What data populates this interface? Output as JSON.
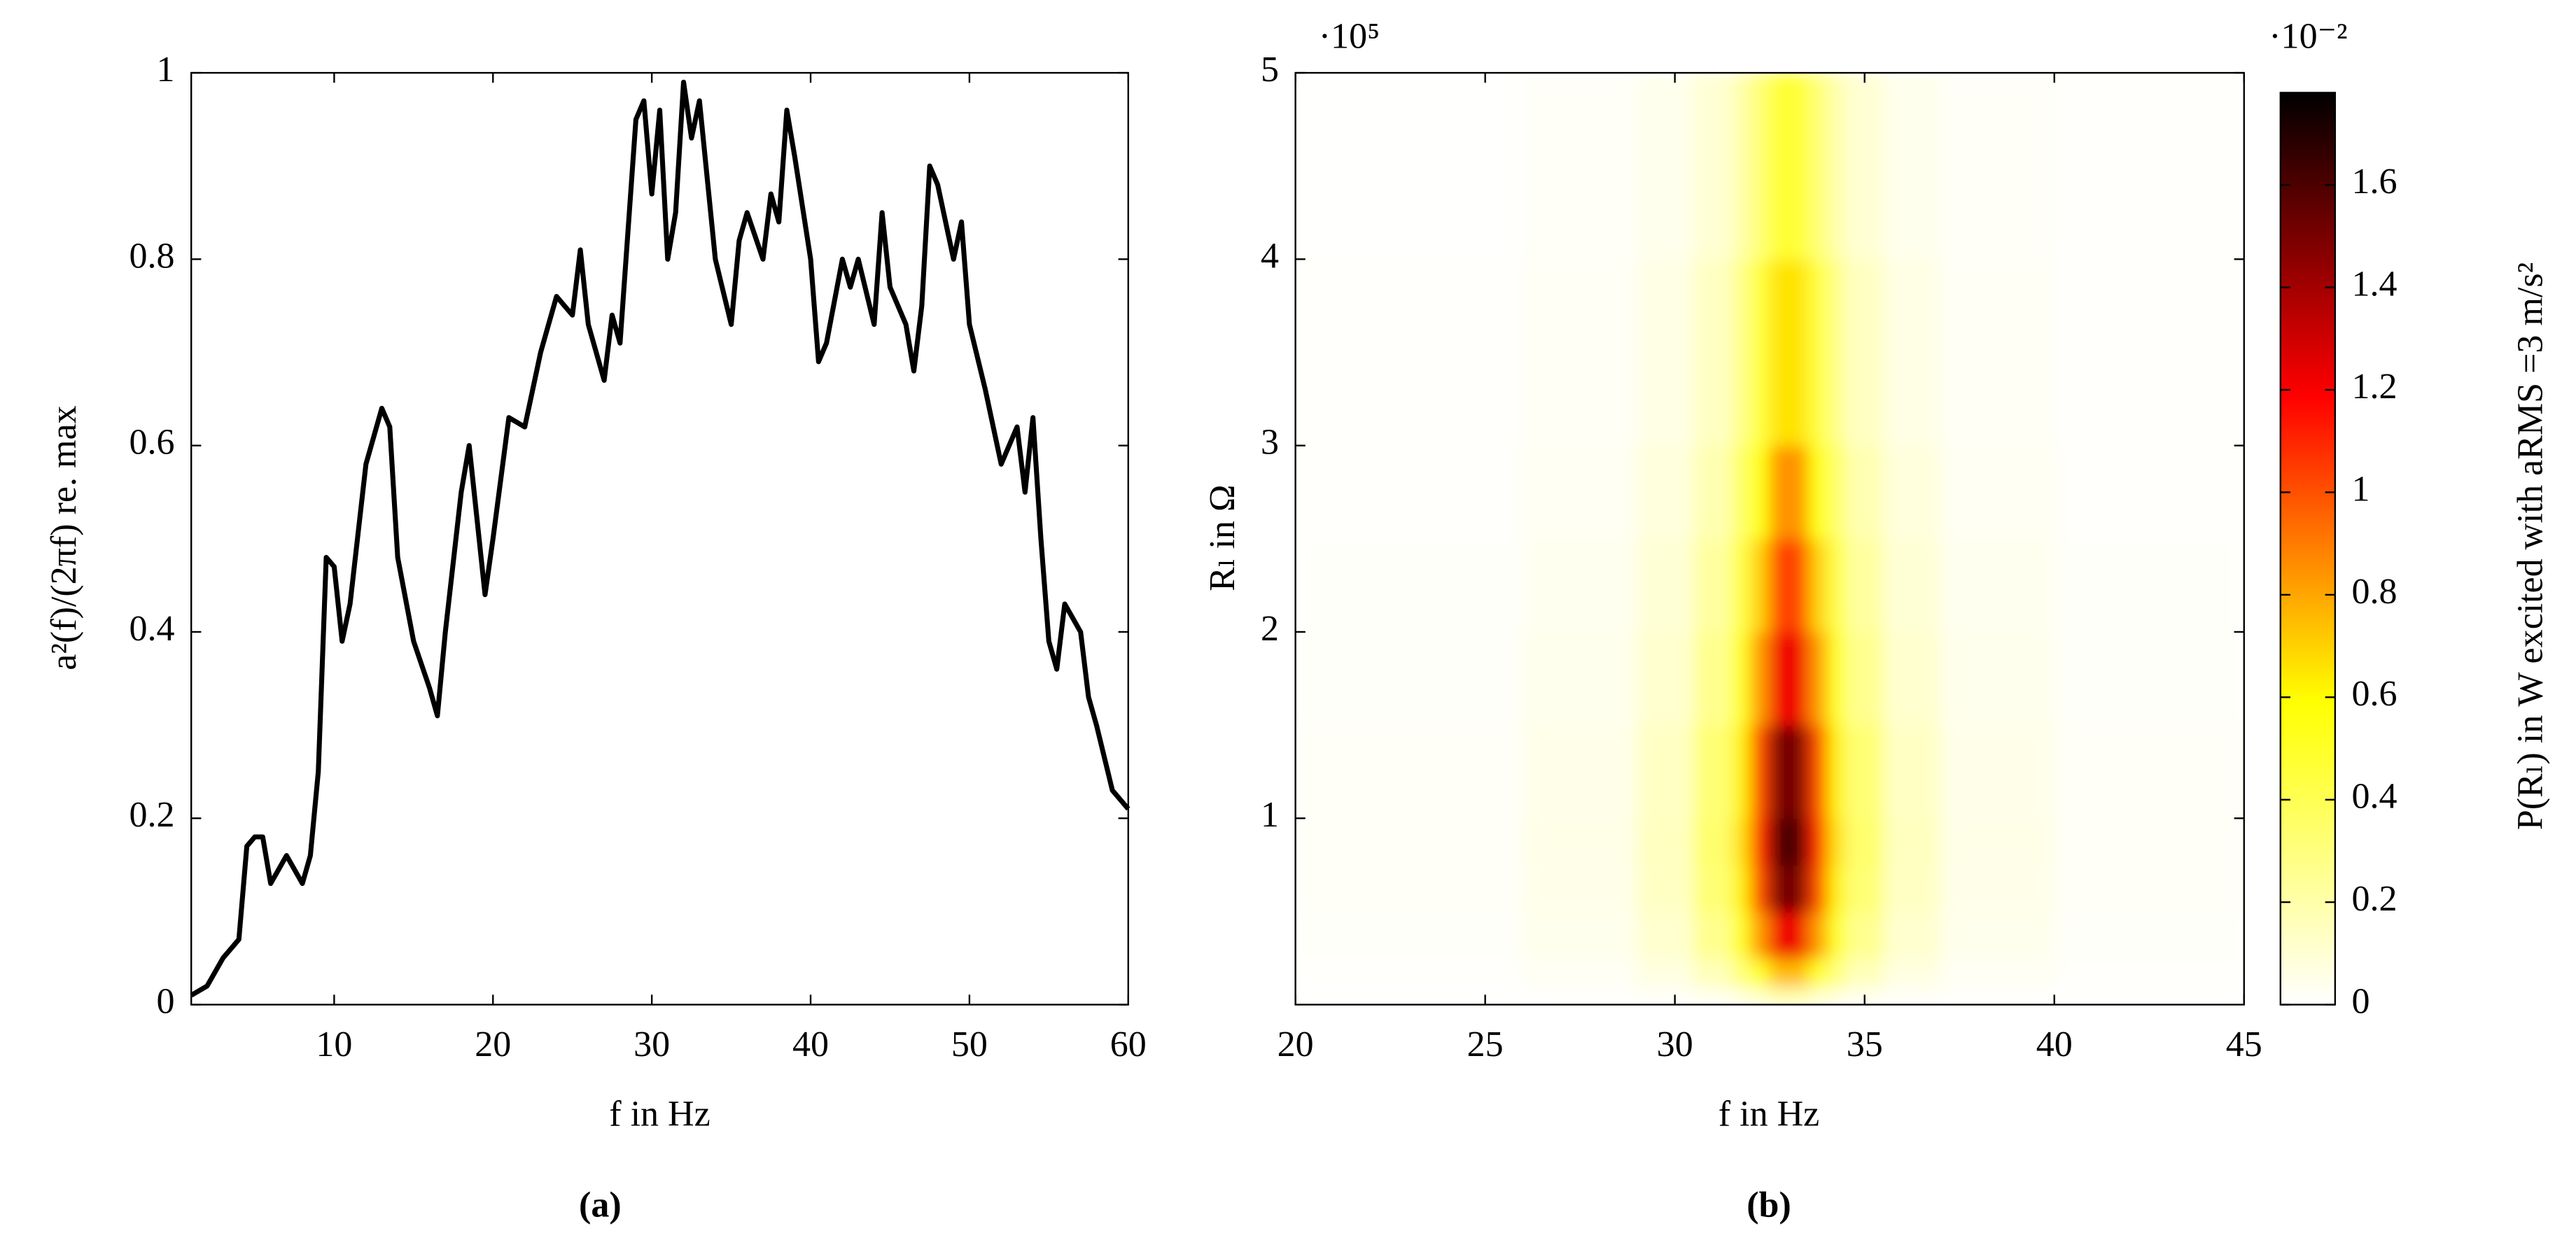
{
  "chart_data": [
    {
      "type": "line",
      "panel_label": "(a)",
      "xlabel": "f in Hz",
      "ylabel": "a²(f)/(2πf) re. max",
      "color": "#000000",
      "x": [
        1,
        2,
        3,
        4,
        4.5,
        5,
        5.5,
        6,
        7,
        8,
        8.5,
        9,
        9.5,
        10,
        10.5,
        11,
        12,
        13,
        13.5,
        14,
        15,
        16,
        16.5,
        17,
        18,
        18.5,
        19,
        19.5,
        20,
        21,
        22,
        23,
        24,
        25,
        25.5,
        26,
        27,
        27.5,
        28,
        29,
        29.5,
        30,
        30.5,
        31,
        31.5,
        32,
        32.5,
        33,
        34,
        35,
        35.5,
        36,
        37,
        37.5,
        38,
        38.5,
        39,
        40,
        40.5,
        41,
        42,
        42.5,
        43,
        44,
        44.5,
        45,
        46,
        46.5,
        47,
        47.5,
        48,
        49,
        49.5,
        50,
        51,
        52,
        53,
        53.5,
        54,
        54.5,
        55,
        55.5,
        56,
        57,
        57.5,
        58,
        59,
        60
      ],
      "values": [
        0.01,
        0.02,
        0.05,
        0.07,
        0.17,
        0.18,
        0.18,
        0.13,
        0.16,
        0.13,
        0.16,
        0.25,
        0.48,
        0.47,
        0.39,
        0.43,
        0.58,
        0.64,
        0.62,
        0.48,
        0.39,
        0.34,
        0.31,
        0.4,
        0.55,
        0.6,
        0.52,
        0.44,
        0.5,
        0.63,
        0.62,
        0.7,
        0.76,
        0.74,
        0.81,
        0.73,
        0.67,
        0.74,
        0.71,
        0.95,
        0.97,
        0.87,
        0.96,
        0.8,
        0.85,
        0.99,
        0.93,
        0.97,
        0.8,
        0.73,
        0.82,
        0.85,
        0.8,
        0.87,
        0.84,
        0.96,
        0.91,
        0.8,
        0.69,
        0.71,
        0.8,
        0.77,
        0.8,
        0.73,
        0.85,
        0.77,
        0.73,
        0.68,
        0.75,
        0.9,
        0.88,
        0.8,
        0.84,
        0.73,
        0.66,
        0.58,
        0.62,
        0.55,
        0.63,
        0.5,
        0.39,
        0.36,
        0.43,
        0.4,
        0.33,
        0.3,
        0.23,
        0.21
      ],
      "xlim": [
        1,
        60
      ],
      "xticks": [
        10,
        20,
        30,
        40,
        50,
        60
      ],
      "ylim": [
        0,
        1
      ],
      "yticks": [
        0,
        0.2,
        0.4,
        0.6,
        0.8,
        1
      ]
    },
    {
      "type": "heatmap",
      "panel_label": "(b)",
      "xlabel": "f in Hz",
      "ylabel": "Rₗ in Ω",
      "y_scale_label": "·10⁵",
      "colorbar_label": "P(Rₗ) in W excited with aRMS =3 m/s²",
      "colorbar_scale_label": "·10⁻²",
      "colormap": [
        "#ffffff",
        "#ffff00",
        "#ff0000",
        "#000000"
      ],
      "xbins": [
        20,
        26,
        29,
        30.5,
        31.5,
        32,
        32.5,
        33,
        33.5,
        34,
        34.5,
        35.5,
        37,
        40,
        45
      ],
      "ybins": [
        0,
        10000,
        25000,
        50000,
        75000,
        100000,
        150000,
        200000,
        250000,
        300000,
        400000,
        500000
      ],
      "z": [
        [
          2e-05,
          6e-05,
          0.00017,
          0.0004,
          0.00078,
          0.00128,
          0.00188,
          0.00188,
          0.00128,
          0.00078,
          0.0004,
          0.00017,
          6e-05,
          2e-05
        ],
        [
          8e-05,
          0.00026,
          0.00069,
          0.0016,
          0.00312,
          0.00512,
          0.00752,
          0.00752,
          0.00512,
          0.00312,
          0.0016,
          0.00069,
          0.00026,
          9e-05
        ],
        [
          0.00013,
          0.00042,
          0.00112,
          0.0026,
          0.00507,
          0.00832,
          0.01222,
          0.01222,
          0.00832,
          0.00507,
          0.0026,
          0.00112,
          0.00042,
          0.00014
        ],
        [
          0.00016,
          0.00051,
          0.00138,
          0.0032,
          0.00624,
          0.01024,
          0.01504,
          0.01504,
          0.01024,
          0.00624,
          0.0032,
          0.00138,
          0.00051,
          0.00018
        ],
        [
          0.00017,
          0.00054,
          0.00147,
          0.0034,
          0.00663,
          0.01088,
          0.01598,
          0.01598,
          0.01088,
          0.00663,
          0.0034,
          0.00147,
          0.00054,
          0.00019
        ],
        [
          0.00016,
          0.00051,
          0.00138,
          0.0032,
          0.00624,
          0.01024,
          0.01504,
          0.01504,
          0.01024,
          0.00624,
          0.0032,
          0.00138,
          0.00051,
          0.00018
        ],
        [
          0.00013,
          0.00042,
          0.00112,
          0.0026,
          0.00507,
          0.00832,
          0.01222,
          0.01222,
          0.00832,
          0.00507,
          0.0026,
          0.00112,
          0.00042,
          0.00014
        ],
        [
          0.00011,
          0.00035,
          0.00095,
          0.0022,
          0.00429,
          0.00704,
          0.01034,
          0.01034,
          0.00704,
          0.00429,
          0.0022,
          0.00095,
          0.00035,
          0.00012
        ],
        [
          9e-05,
          0.00029,
          0.00078,
          0.0018,
          0.00351,
          0.00576,
          0.00846,
          0.00846,
          0.00576,
          0.00351,
          0.0018,
          0.00078,
          0.00029,
          0.0001
        ],
        [
          7e-05,
          0.00022,
          0.00061,
          0.0014,
          0.00273,
          0.00448,
          0.00658,
          0.00658,
          0.00448,
          0.00273,
          0.0014,
          0.00061,
          0.00022,
          8e-05
        ],
        [
          5e-05,
          0.00016,
          0.00043,
          0.001,
          0.00195,
          0.0032,
          0.0047,
          0.0047,
          0.0032,
          0.00195,
          0.001,
          0.00043,
          0.00016,
          6e-05
        ]
      ],
      "xlim": [
        20,
        45
      ],
      "xticks": [
        20,
        25,
        30,
        35,
        40,
        45
      ],
      "ylim": [
        0,
        500000
      ],
      "yticks": [
        {
          "value": 100000,
          "label": "1"
        },
        {
          "value": 200000,
          "label": "2"
        },
        {
          "value": 300000,
          "label": "3"
        },
        {
          "value": 400000,
          "label": "4"
        },
        {
          "value": 500000,
          "label": "5"
        }
      ],
      "clim": [
        0,
        0.0178
      ],
      "cticks": [
        {
          "value": 0,
          "label": "0"
        },
        {
          "value": 0.002,
          "label": "0.2"
        },
        {
          "value": 0.004,
          "label": "0.4"
        },
        {
          "value": 0.006,
          "label": "0.6"
        },
        {
          "value": 0.008,
          "label": "0.8"
        },
        {
          "value": 0.01,
          "label": "1"
        },
        {
          "value": 0.012,
          "label": "1.2"
        },
        {
          "value": 0.014,
          "label": "1.4"
        },
        {
          "value": 0.016,
          "label": "1.6"
        }
      ]
    }
  ]
}
